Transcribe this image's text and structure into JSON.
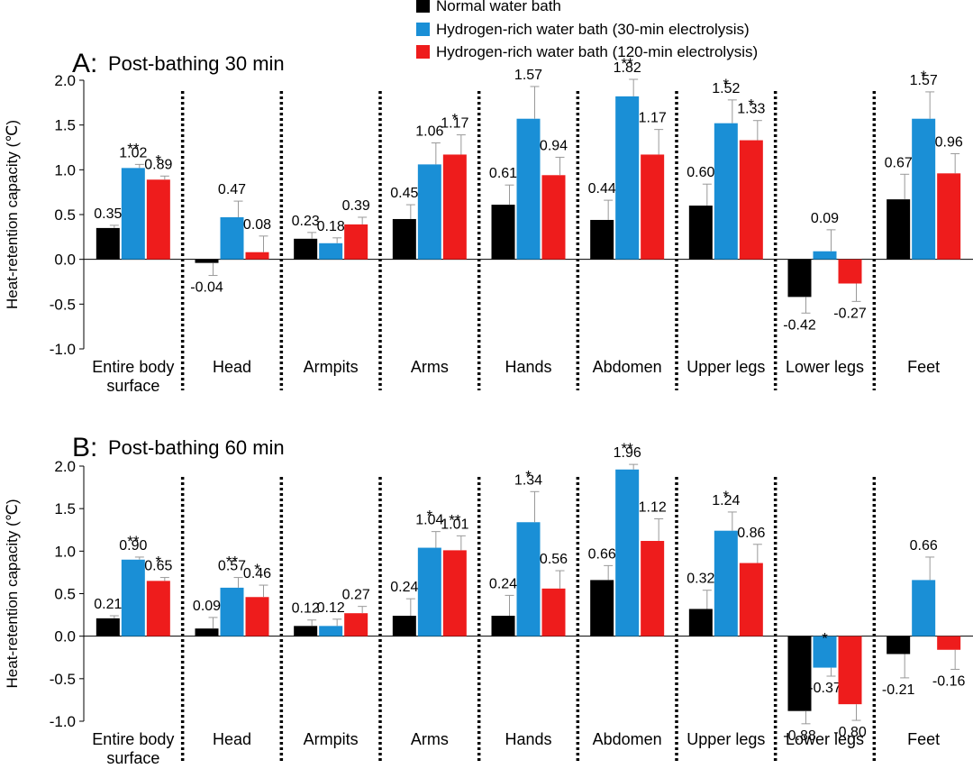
{
  "legend": [
    {
      "name": "Normal water bath",
      "color": "#000000"
    },
    {
      "name": "Hydrogen-rich water bath (30-min electrolysis)",
      "color": "#1a8fd6"
    },
    {
      "name": "Hydrogen-rich water bath (120-min electrolysis)",
      "color": "#ee1c1c"
    }
  ],
  "chart_data": [
    {
      "type": "bar",
      "panel": "A:",
      "title": "Post-bathing 30 min",
      "ylabel": "Heat-retention capacity (℃)",
      "ylim": [
        -1.0,
        2.0
      ],
      "yticks": [
        "2.0",
        "1.5",
        "1.0",
        "0.5",
        "0.0",
        "-0.5",
        "-1.0"
      ],
      "categories": [
        [
          "Entire body",
          "surface"
        ],
        [
          "Head"
        ],
        [
          "Armpits"
        ],
        [
          "Arms"
        ],
        [
          "Hands"
        ],
        [
          "Abdomen"
        ],
        [
          "Upper legs"
        ],
        [
          "Lower legs"
        ],
        [
          "Feet"
        ]
      ],
      "series": [
        {
          "name": "Normal water bath",
          "values": [
            0.35,
            -0.04,
            0.23,
            0.45,
            0.61,
            0.44,
            0.6,
            -0.42,
            0.67
          ],
          "labels": [
            "0.35",
            "-0.04",
            "0.23",
            "0.45",
            "0.61",
            "0.44",
            "0.60",
            "-0.42",
            "0.67"
          ],
          "errors": [
            0.03,
            0.14,
            0.07,
            0.16,
            0.22,
            0.22,
            0.24,
            0.18,
            0.28
          ],
          "sig": [
            "",
            "",
            "",
            "",
            "",
            "",
            "",
            "",
            ""
          ]
        },
        {
          "name": "Hydrogen-rich water bath (30-min electrolysis)",
          "values": [
            1.02,
            0.47,
            0.18,
            1.06,
            1.57,
            1.82,
            1.52,
            0.09,
            1.57
          ],
          "labels": [
            "1.02",
            "0.47",
            "0.18",
            "1.06",
            "1.57",
            "1.82",
            "1.52",
            "0.09",
            "1.57"
          ],
          "errors": [
            0.04,
            0.18,
            0.06,
            0.24,
            0.36,
            0.19,
            0.26,
            0.24,
            0.3
          ],
          "sig": [
            "**",
            "",
            "",
            "",
            "",
            "**",
            "*",
            "",
            "*"
          ]
        },
        {
          "name": "Hydrogen-rich water bath (120-min electrolysis)",
          "values": [
            0.89,
            0.08,
            0.39,
            1.17,
            0.94,
            1.17,
            1.33,
            -0.27,
            0.96
          ],
          "labels": [
            "0.89",
            "0.08",
            "0.39",
            "1.17",
            "0.94",
            "1.17",
            "1.33",
            "-0.27",
            "0.96"
          ],
          "errors": [
            0.04,
            0.18,
            0.08,
            0.22,
            0.2,
            0.28,
            0.22,
            0.2,
            0.22
          ],
          "sig": [
            "*",
            "",
            "",
            "*",
            "",
            "",
            "*",
            "",
            ""
          ]
        }
      ]
    },
    {
      "type": "bar",
      "panel": "B:",
      "title": "Post-bathing 60 min",
      "ylabel": "Heat-retention capacity (℃)",
      "ylim": [
        -1.0,
        2.0
      ],
      "yticks": [
        "2.0",
        "1.5",
        "1.0",
        "0.5",
        "0.0",
        "-0.5",
        "-1.0"
      ],
      "categories": [
        [
          "Entire body",
          "surface"
        ],
        [
          "Head"
        ],
        [
          "Armpits"
        ],
        [
          "Arms"
        ],
        [
          "Hands"
        ],
        [
          "Abdomen"
        ],
        [
          "Upper legs"
        ],
        [
          "Lower legs"
        ],
        [
          "Feet"
        ]
      ],
      "series": [
        {
          "name": "Normal water bath",
          "values": [
            0.21,
            0.09,
            0.12,
            0.24,
            0.24,
            0.66,
            0.32,
            -0.88,
            -0.21
          ],
          "labels": [
            "0.21",
            "0.09",
            "0.12",
            "0.24",
            "0.24",
            "0.66",
            "0.32",
            "-0.88",
            "-0.21"
          ],
          "errors": [
            0.03,
            0.13,
            0.07,
            0.2,
            0.24,
            0.17,
            0.22,
            0.15,
            0.28
          ],
          "sig": [
            "",
            "",
            "",
            "",
            "",
            "",
            "",
            "**",
            ""
          ]
        },
        {
          "name": "Hydrogen-rich water bath (30-min electrolysis)",
          "values": [
            0.9,
            0.57,
            0.12,
            1.04,
            1.34,
            1.96,
            1.24,
            -0.37,
            0.66
          ],
          "labels": [
            "0.90",
            "0.57",
            "0.12",
            "1.04",
            "1.34",
            "1.96",
            "1.24",
            "-0.37",
            "0.66"
          ],
          "errors": [
            0.03,
            0.12,
            0.08,
            0.19,
            0.36,
            0.06,
            0.22,
            0.1,
            0.27
          ],
          "sig": [
            "**",
            "**",
            "",
            "*",
            "*",
            "**",
            "*",
            "*",
            ""
          ]
        },
        {
          "name": "Hydrogen-rich water bath (120-min electrolysis)",
          "values": [
            0.65,
            0.46,
            0.27,
            1.01,
            0.56,
            1.12,
            0.86,
            -0.8,
            -0.16
          ],
          "labels": [
            "0.65",
            "0.46",
            "0.27",
            "1.01",
            "0.56",
            "1.12",
            "0.86",
            "-0.80",
            "-0.16"
          ],
          "errors": [
            0.04,
            0.14,
            0.08,
            0.17,
            0.21,
            0.26,
            0.22,
            0.19,
            0.23
          ],
          "sig": [
            "*",
            "*",
            "",
            "**",
            "",
            "",
            "",
            "",
            ""
          ]
        }
      ]
    }
  ]
}
